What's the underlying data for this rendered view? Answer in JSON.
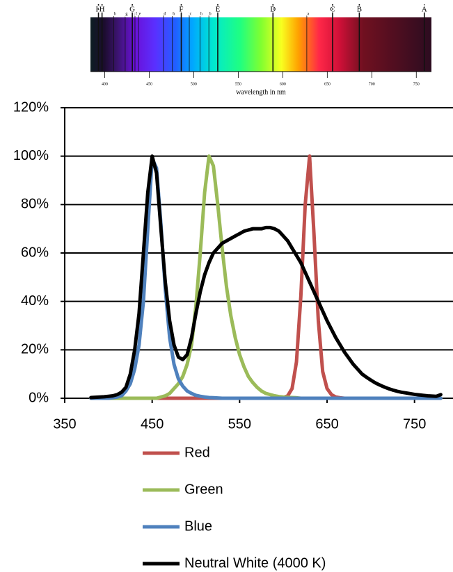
{
  "spectrum": {
    "lines": [
      {
        "label": "K",
        "nm": 393
      },
      {
        "label": "H",
        "nm": 397
      },
      {
        "label": "h",
        "nm": 410
      },
      {
        "label": "g",
        "nm": 423
      },
      {
        "label": "G",
        "nm": 431
      },
      {
        "label": "f",
        "nm": 434
      },
      {
        "label": "e",
        "nm": 438
      },
      {
        "label": "d",
        "nm": 466
      },
      {
        "label": "h",
        "nm": 476
      },
      {
        "label": "F",
        "nm": 486
      },
      {
        "label": "c",
        "nm": 495
      },
      {
        "label": "h",
        "nm": 507
      },
      {
        "label": "b",
        "nm": 517
      },
      {
        "label": "E",
        "nm": 527
      },
      {
        "label": "D",
        "nm": 589
      },
      {
        "label": "a",
        "nm": 627
      },
      {
        "label": "C",
        "nm": 656
      },
      {
        "label": "B",
        "nm": 686
      },
      {
        "label": "A",
        "nm": 759
      }
    ],
    "xlim": [
      384,
      767
    ],
    "xticks": [
      400,
      450,
      500,
      550,
      600,
      650,
      700,
      750
    ],
    "axis_label": "wavelength in nm"
  },
  "chart_data": {
    "type": "line",
    "x": [
      380,
      385,
      390,
      395,
      400,
      405,
      410,
      415,
      420,
      425,
      430,
      435,
      440,
      445,
      450,
      455,
      460,
      465,
      470,
      475,
      480,
      485,
      490,
      495,
      500,
      505,
      510,
      515,
      520,
      525,
      530,
      535,
      540,
      545,
      550,
      555,
      560,
      565,
      570,
      575,
      580,
      585,
      590,
      595,
      600,
      605,
      610,
      615,
      620,
      625,
      630,
      635,
      640,
      645,
      650,
      655,
      660,
      665,
      670,
      675,
      680,
      685,
      690,
      695,
      700,
      705,
      710,
      715,
      720,
      725,
      730,
      735,
      740,
      745,
      750,
      755,
      760,
      765,
      770,
      775,
      780
    ],
    "series": [
      {
        "name": "Red",
        "color": "#c0504d",
        "values": [
          0,
          0,
          0,
          0,
          0,
          0,
          0,
          0,
          0,
          0,
          0,
          0,
          0,
          0,
          0,
          0,
          0,
          0,
          0,
          0,
          0,
          0,
          0,
          0,
          0,
          0,
          0,
          0,
          0,
          0,
          0,
          0,
          0,
          0,
          0,
          0,
          0,
          0,
          0,
          0,
          0,
          0,
          0,
          0,
          0.3,
          1,
          4,
          15,
          42,
          80,
          100,
          68,
          32,
          11,
          4,
          1.5,
          0.5,
          0.2,
          0,
          0,
          0,
          0,
          0,
          0,
          0,
          0,
          0,
          0,
          0,
          0,
          0,
          0,
          0,
          0,
          0,
          0,
          0,
          0,
          0,
          0,
          0
        ]
      },
      {
        "name": "Green",
        "color": "#9bbb59",
        "values": [
          0,
          0,
          0,
          0,
          0,
          0,
          0,
          0,
          0,
          0,
          0,
          0,
          0,
          0,
          0,
          0,
          0.5,
          1,
          2,
          4,
          6,
          9,
          14,
          22,
          38,
          60,
          85,
          100,
          96,
          80,
          62,
          46,
          34,
          25,
          18,
          13,
          9,
          6.5,
          4.5,
          3,
          2,
          1.5,
          1,
          0.7,
          0.5,
          0.4,
          0.3,
          0.2,
          0,
          0,
          0,
          0,
          0,
          0,
          0,
          0,
          0,
          0,
          0,
          0,
          0,
          0,
          0,
          0,
          0,
          0,
          0,
          0,
          0,
          0,
          0,
          0,
          0,
          0,
          0,
          0,
          0,
          0,
          0,
          0,
          0
        ]
      },
      {
        "name": "Blue",
        "color": "#4f81bd",
        "values": [
          0,
          0,
          0,
          0,
          0,
          0.2,
          0.5,
          1,
          3,
          6,
          12,
          22,
          40,
          70,
          99,
          95,
          72,
          45,
          25,
          14,
          8,
          5,
          3,
          2,
          1.2,
          0.8,
          0.5,
          0.3,
          0.2,
          0.1,
          0,
          0,
          0,
          0,
          0,
          0,
          0,
          0,
          0,
          0,
          0,
          0,
          0,
          0,
          0,
          0,
          0,
          0,
          0,
          0,
          0,
          0,
          0,
          0,
          0,
          0,
          0,
          0,
          0,
          0,
          0,
          0,
          0,
          0,
          0,
          0,
          0,
          0,
          0,
          0,
          0,
          0,
          0,
          0,
          0,
          0,
          0,
          0,
          0,
          0,
          0
        ]
      },
      {
        "name": "Neutral White (4000 K)",
        "color": "#000000",
        "values": [
          0.3,
          0.4,
          0.5,
          0.6,
          0.8,
          1,
          1.5,
          2.5,
          4.5,
          10,
          20,
          35,
          60,
          85,
          100,
          93,
          70,
          48,
          32,
          22,
          17,
          16,
          18,
          25,
          35,
          44,
          51,
          56,
          60,
          62,
          64,
          65,
          66,
          67,
          68,
          69,
          69.5,
          70,
          70,
          70,
          70.5,
          70.5,
          70,
          69,
          67,
          65,
          62,
          59,
          56,
          52,
          48,
          44,
          40,
          36,
          32,
          28.5,
          25,
          22,
          19,
          16.5,
          14,
          12,
          10,
          8.7,
          7.5,
          6.4,
          5.5,
          4.7,
          4,
          3.4,
          2.9,
          2.5,
          2.2,
          1.9,
          1.6,
          1.4,
          1.2,
          1,
          0.9,
          0.8,
          1.5
        ]
      }
    ],
    "xlim": [
      350,
      794
    ],
    "xticks": [
      350,
      450,
      550,
      650,
      750
    ],
    "ylim": [
      0,
      120
    ],
    "yticks": [
      {
        "value": 0,
        "label": "0%"
      },
      {
        "value": 20,
        "label": "20%"
      },
      {
        "value": 40,
        "label": "40%"
      },
      {
        "value": 60,
        "label": "60%"
      },
      {
        "value": 80,
        "label": "80%"
      },
      {
        "value": 100,
        "label": "100%"
      },
      {
        "value": 120,
        "label": "120%"
      }
    ],
    "grid": true
  }
}
